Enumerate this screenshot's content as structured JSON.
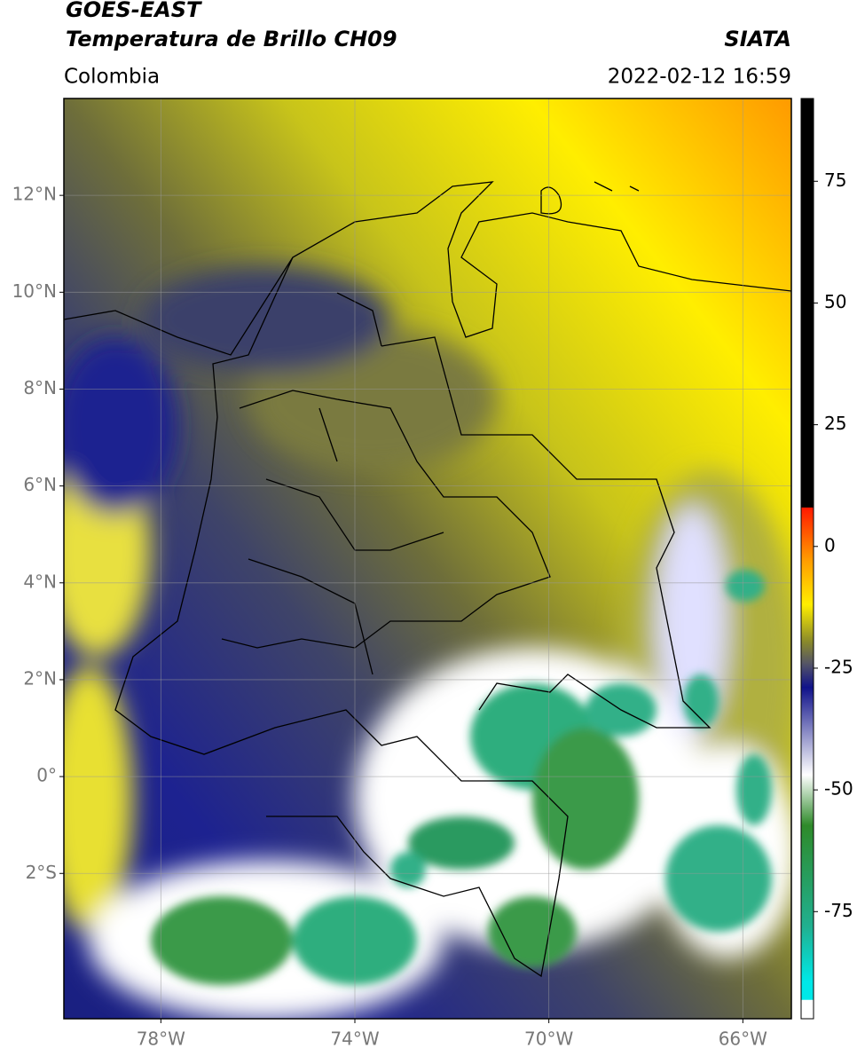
{
  "header": {
    "satellite": "GOES-EAST",
    "product": "Temperatura de Brillo CH09",
    "agency": "SIATA",
    "region": "Colombia",
    "datetime": "2022-02-12 16:59"
  },
  "map": {
    "lon_range": [
      -80,
      -65
    ],
    "lat_range": [
      -5,
      14
    ],
    "grid": true,
    "lon_ticks": [
      {
        "value": -78,
        "label": "78°W"
      },
      {
        "value": -74,
        "label": "74°W"
      },
      {
        "value": -70,
        "label": "70°W"
      },
      {
        "value": -66,
        "label": "66°W"
      }
    ],
    "lat_ticks": [
      {
        "value": 12,
        "label": "12°N"
      },
      {
        "value": 10,
        "label": "10°N"
      },
      {
        "value": 8,
        "label": "8°N"
      },
      {
        "value": 6,
        "label": "6°N"
      },
      {
        "value": 4,
        "label": "4°N"
      },
      {
        "value": 2,
        "label": "2°N"
      },
      {
        "value": 0,
        "label": "0°"
      },
      {
        "value": -2,
        "label": "2°S"
      }
    ]
  },
  "colorbar": {
    "range": [
      -97,
      92
    ],
    "ticks": [
      75,
      50,
      25,
      0,
      -25,
      -50,
      -75
    ]
  }
}
